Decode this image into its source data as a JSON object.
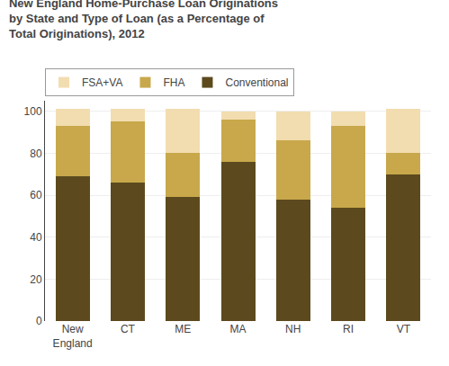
{
  "chart_data": {
    "type": "bar",
    "stacked": true,
    "title": "New England Home-Purchase Loan Originations\nby State and Type of Loan (as a Percentage of\nTotal Originations), 2012",
    "categories": [
      "New\nEngland",
      "CT",
      "ME",
      "MA",
      "NH",
      "RI",
      "VT"
    ],
    "series": [
      {
        "name": "Conventional",
        "color": "#5C4A1E",
        "values": [
          69,
          66,
          59,
          76,
          58,
          54,
          70
        ]
      },
      {
        "name": "FHA",
        "color": "#C8A84B",
        "values": [
          24,
          29,
          21,
          20,
          28,
          39,
          10
        ]
      },
      {
        "name": "FSA+VA",
        "color": "#F2DDB0",
        "values": [
          8,
          6,
          21,
          4,
          14,
          7,
          21
        ]
      }
    ],
    "ylim": [
      0,
      105
    ],
    "yticks": [
      0,
      20,
      40,
      60,
      80,
      100
    ],
    "grid": true,
    "legend": "upper left"
  }
}
